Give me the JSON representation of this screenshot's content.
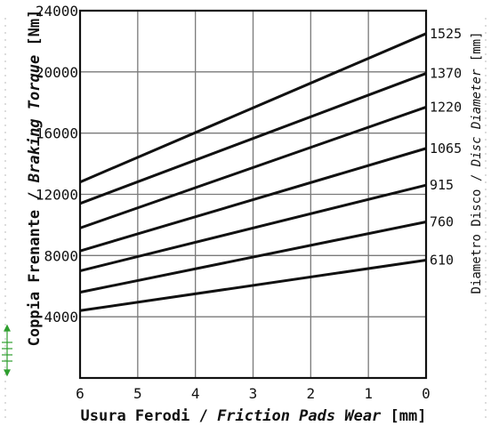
{
  "chart_data": {
    "type": "line",
    "x": [
      6,
      0
    ],
    "series": [
      {
        "name": "1525",
        "values": [
          12800,
          22500
        ]
      },
      {
        "name": "1370",
        "values": [
          11400,
          19900
        ]
      },
      {
        "name": "1220",
        "values": [
          9800,
          17700
        ]
      },
      {
        "name": "1065",
        "values": [
          8300,
          15000
        ]
      },
      {
        "name": "915",
        "values": [
          7000,
          12600
        ]
      },
      {
        "name": "760",
        "values": [
          5600,
          10200
        ]
      },
      {
        "name": "610",
        "values": [
          4400,
          7700
        ]
      }
    ],
    "xlim": [
      6,
      0
    ],
    "ylim": [
      0,
      24000
    ],
    "xticks": [
      "6",
      "5",
      "4",
      "3",
      "2",
      "1",
      "0"
    ],
    "yticks": [
      "4000",
      "8000",
      "12000",
      "16000",
      "20000",
      "24000"
    ],
    "xlabel_it": "Usura Ferodi",
    "xlabel_sep": " / ",
    "xlabel_en": "Friction Pads Wear",
    "xlabel_unit": " [mm]",
    "ylabel_it": "Coppia Frenante",
    "ylabel_sep": " / ",
    "ylabel_en": "Braking Torque",
    "ylabel_unit": " [Nm]",
    "y2label_it": "Diametro Disco",
    "y2label_sep": " / ",
    "y2label_en": "Disc Diameter",
    "y2label_unit": " [mm]",
    "grid": true,
    "colors": {
      "line": "#111111",
      "grid": "#7a7a7a",
      "accent": "#2e9e2e"
    }
  }
}
